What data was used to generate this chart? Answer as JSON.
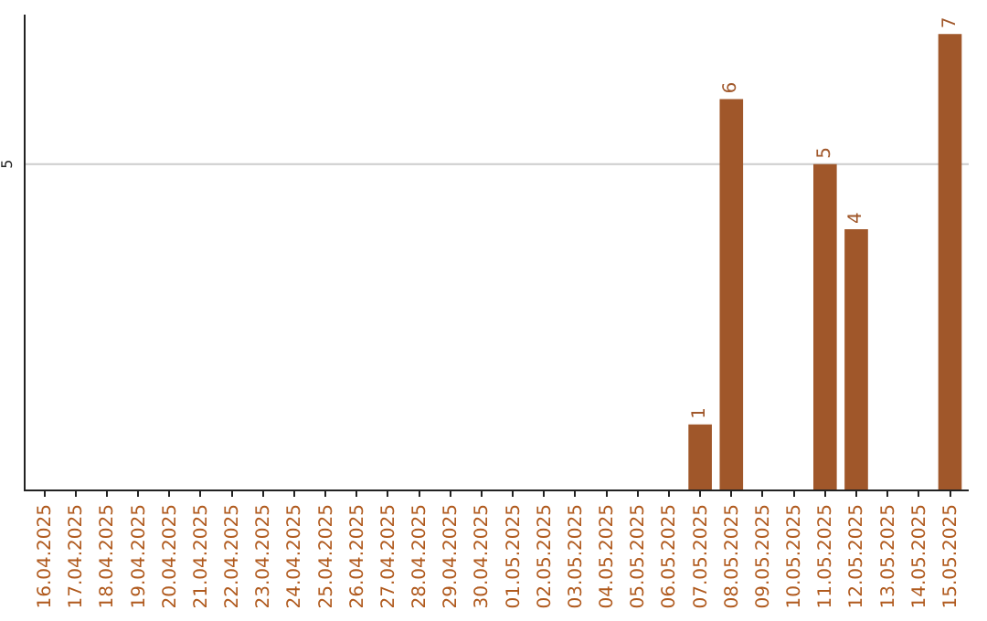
{
  "chart_data": {
    "type": "bar",
    "categories": [
      "16.04.2025",
      "17.04.2025",
      "18.04.2025",
      "19.04.2025",
      "20.04.2025",
      "21.04.2025",
      "22.04.2025",
      "23.04.2025",
      "24.04.2025",
      "25.04.2025",
      "26.04.2025",
      "27.04.2025",
      "28.04.2025",
      "29.04.2025",
      "30.04.2025",
      "01.05.2025",
      "02.05.2025",
      "03.05.2025",
      "04.05.2025",
      "05.05.2025",
      "06.05.2025",
      "07.05.2025",
      "08.05.2025",
      "09.05.2025",
      "10.05.2025",
      "11.05.2025",
      "12.05.2025",
      "13.05.2025",
      "14.05.2025",
      "15.05.2025"
    ],
    "values": [
      null,
      null,
      null,
      null,
      null,
      null,
      null,
      null,
      null,
      null,
      null,
      null,
      null,
      null,
      null,
      null,
      null,
      null,
      null,
      null,
      null,
      1,
      6,
      null,
      null,
      5,
      4,
      null,
      null,
      7
    ],
    "data_labels": true,
    "color": "#a0572a",
    "ylim": [
      0,
      7.3
    ],
    "ref_lines": [
      {
        "axis": "y",
        "value": 5,
        "label": "5",
        "color": "#cccccc"
      }
    ],
    "legend": false
  }
}
